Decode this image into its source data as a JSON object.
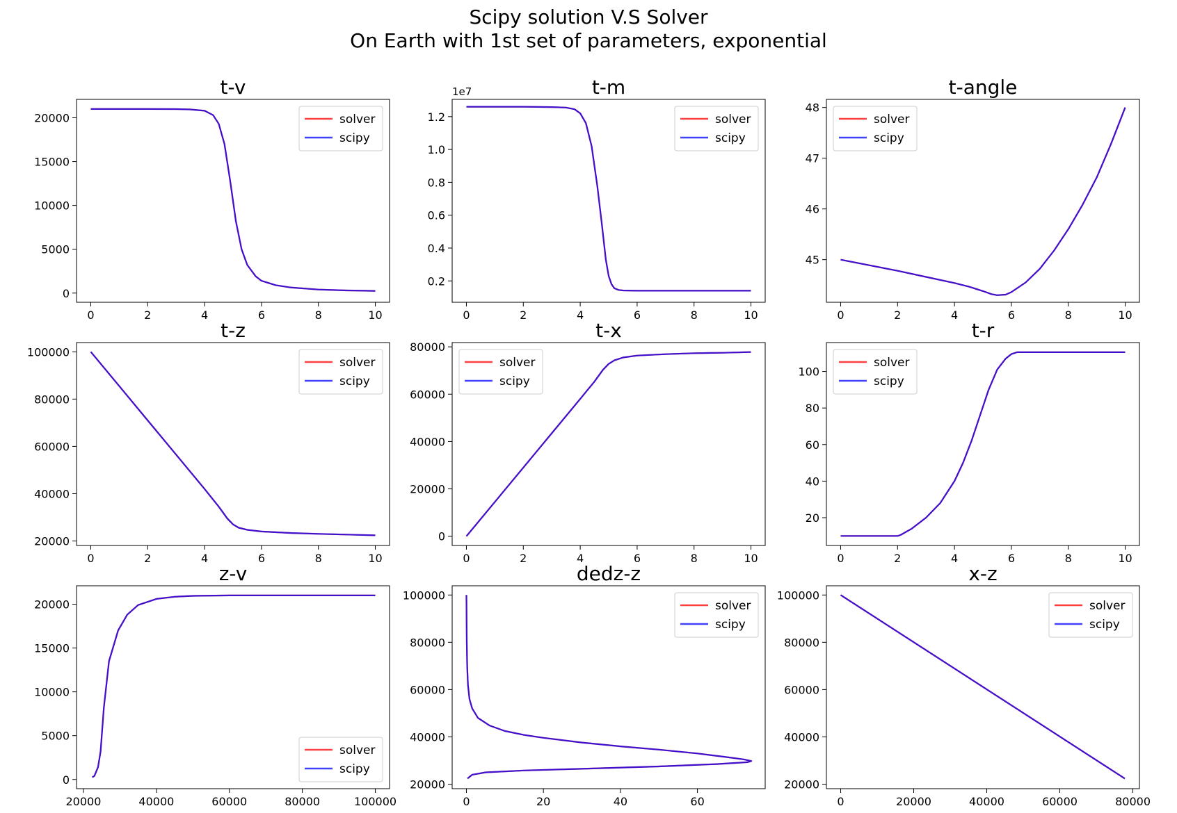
{
  "figure": {
    "title_line1": "Scipy solution V.S Solver",
    "title_line2": "On Earth with 1st set of parameters, exponential"
  },
  "colors": {
    "solver": "#ff0000",
    "scipy": "#0000ff",
    "legend_border": "#cccccc"
  },
  "chart_data": [
    {
      "type": "line",
      "title": "t-v",
      "xlim": [
        -0.5,
        10.5
      ],
      "ylim": [
        -1050,
        22100
      ],
      "xticks": [
        0,
        2,
        4,
        6,
        8,
        10
      ],
      "yticks": [
        0,
        5000,
        10000,
        15000,
        20000
      ],
      "ytick_labels": [
        "0",
        "5000",
        "10000",
        "15000",
        "20000"
      ],
      "legend": "upper right",
      "series": [
        {
          "name": "solver",
          "x": [
            0,
            2,
            3,
            3.5,
            4,
            4.3,
            4.5,
            4.7,
            4.9,
            5.0,
            5.1,
            5.3,
            5.5,
            5.8,
            6.0,
            6.5,
            7,
            8,
            9,
            10
          ],
          "y": [
            21000,
            21000,
            20990,
            20950,
            20800,
            20300,
            19300,
            17000,
            12800,
            10500,
            8200,
            5000,
            3200,
            1900,
            1400,
            900,
            650,
            400,
            300,
            250
          ]
        },
        {
          "name": "scipy",
          "x": [
            0,
            2,
            3,
            3.5,
            4,
            4.3,
            4.5,
            4.7,
            4.9,
            5.0,
            5.1,
            5.3,
            5.5,
            5.8,
            6.0,
            6.5,
            7,
            8,
            9,
            10
          ],
          "y": [
            21000,
            21000,
            20990,
            20950,
            20800,
            20300,
            19300,
            17000,
            12800,
            10500,
            8200,
            5000,
            3200,
            1900,
            1400,
            900,
            650,
            400,
            300,
            250
          ]
        }
      ]
    },
    {
      "type": "line",
      "title": "t-m",
      "xlim": [
        -0.5,
        10.5
      ],
      "ylim": [
        0.07,
        1.305
      ],
      "xticks": [
        0,
        2,
        4,
        6,
        8,
        10
      ],
      "yticks": [
        0.2,
        0.4,
        0.6,
        0.8,
        1.0,
        1.2
      ],
      "ytick_labels": [
        "0.2",
        "0.4",
        "0.6",
        "0.8",
        "1.0",
        "1.2"
      ],
      "y_offset_label": "1e7",
      "legend": "upper right",
      "series": [
        {
          "name": "solver",
          "x": [
            0,
            2,
            3,
            3.5,
            3.8,
            4.0,
            4.2,
            4.4,
            4.6,
            4.75,
            4.9,
            5.0,
            5.1,
            5.2,
            5.35,
            5.5,
            6,
            7,
            8,
            10
          ],
          "y": [
            1.26,
            1.26,
            1.258,
            1.255,
            1.245,
            1.22,
            1.16,
            1.02,
            0.78,
            0.56,
            0.33,
            0.23,
            0.18,
            0.155,
            0.145,
            0.142,
            0.14,
            0.14,
            0.14,
            0.14
          ]
        },
        {
          "name": "scipy",
          "x": [
            0,
            2,
            3,
            3.5,
            3.8,
            4.0,
            4.2,
            4.4,
            4.6,
            4.75,
            4.9,
            5.0,
            5.1,
            5.2,
            5.35,
            5.5,
            6,
            7,
            8,
            10
          ],
          "y": [
            1.26,
            1.26,
            1.258,
            1.255,
            1.245,
            1.22,
            1.16,
            1.02,
            0.78,
            0.56,
            0.33,
            0.23,
            0.18,
            0.155,
            0.145,
            0.142,
            0.14,
            0.14,
            0.14,
            0.14
          ]
        }
      ]
    },
    {
      "type": "line",
      "title": "t-angle",
      "xlim": [
        -0.5,
        10.5
      ],
      "ylim": [
        44.16,
        48.16
      ],
      "xticks": [
        0,
        2,
        4,
        6,
        8,
        10
      ],
      "yticks": [
        45,
        46,
        47,
        48
      ],
      "ytick_labels": [
        "45",
        "46",
        "47",
        "48"
      ],
      "legend": "upper left",
      "series": [
        {
          "name": "solver",
          "x": [
            0,
            1,
            2,
            3,
            4,
            4.5,
            5.0,
            5.3,
            5.5,
            5.8,
            6,
            6.5,
            7,
            7.5,
            8,
            8.5,
            9,
            9.5,
            10
          ],
          "y": [
            45.0,
            44.89,
            44.78,
            44.66,
            44.54,
            44.47,
            44.38,
            44.32,
            44.3,
            44.31,
            44.36,
            44.55,
            44.82,
            45.18,
            45.6,
            46.08,
            46.62,
            47.28,
            48.0
          ]
        },
        {
          "name": "scipy",
          "x": [
            0,
            1,
            2,
            3,
            4,
            4.5,
            5.0,
            5.3,
            5.5,
            5.8,
            6,
            6.5,
            7,
            7.5,
            8,
            8.5,
            9,
            9.5,
            10
          ],
          "y": [
            45.0,
            44.89,
            44.78,
            44.66,
            44.54,
            44.47,
            44.38,
            44.32,
            44.3,
            44.31,
            44.36,
            44.55,
            44.82,
            45.18,
            45.6,
            46.08,
            46.62,
            47.28,
            48.0
          ]
        }
      ]
    },
    {
      "type": "line",
      "title": "t-z",
      "xlim": [
        -0.5,
        10.5
      ],
      "ylim": [
        18100,
        103900
      ],
      "xticks": [
        0,
        2,
        4,
        6,
        8,
        10
      ],
      "yticks": [
        20000,
        40000,
        60000,
        80000,
        100000
      ],
      "ytick_labels": [
        "20000",
        "40000",
        "60000",
        "80000",
        "100000"
      ],
      "legend": "upper right",
      "series": [
        {
          "name": "solver",
          "x": [
            0,
            1,
            2,
            3,
            4,
            4.5,
            4.8,
            5.0,
            5.2,
            5.5,
            6,
            7,
            8,
            9,
            10
          ],
          "y": [
            100000,
            85500,
            71000,
            56500,
            42000,
            34500,
            29500,
            27000,
            25600,
            24700,
            24000,
            23400,
            23000,
            22700,
            22400
          ]
        },
        {
          "name": "scipy",
          "x": [
            0,
            1,
            2,
            3,
            4,
            4.5,
            4.8,
            5.0,
            5.2,
            5.5,
            6,
            7,
            8,
            9,
            10
          ],
          "y": [
            100000,
            85500,
            71000,
            56500,
            42000,
            34500,
            29500,
            27000,
            25600,
            24700,
            24000,
            23400,
            23000,
            22700,
            22400
          ]
        }
      ]
    },
    {
      "type": "line",
      "title": "t-x",
      "xlim": [
        -0.5,
        10.5
      ],
      "ylim": [
        -3900,
        81800
      ],
      "xticks": [
        0,
        2,
        4,
        6,
        8,
        10
      ],
      "yticks": [
        0,
        20000,
        40000,
        60000,
        80000
      ],
      "ytick_labels": [
        "0",
        "20000",
        "40000",
        "60000",
        "80000"
      ],
      "legend": "upper left",
      "series": [
        {
          "name": "solver",
          "x": [
            0,
            1,
            2,
            3,
            4,
            4.5,
            4.8,
            5.0,
            5.2,
            5.5,
            6,
            7,
            8,
            9,
            10
          ],
          "y": [
            0,
            14500,
            29000,
            43500,
            58000,
            65300,
            70300,
            72800,
            74300,
            75500,
            76300,
            76900,
            77300,
            77500,
            77800
          ]
        },
        {
          "name": "scipy",
          "x": [
            0,
            1,
            2,
            3,
            4,
            4.5,
            4.8,
            5.0,
            5.2,
            5.5,
            6,
            7,
            8,
            9,
            10
          ],
          "y": [
            0,
            14500,
            29000,
            43500,
            58000,
            65300,
            70300,
            72800,
            74300,
            75500,
            76300,
            76900,
            77300,
            77500,
            77800
          ]
        }
      ]
    },
    {
      "type": "line",
      "title": "t-r",
      "xlim": [
        -0.5,
        10.5
      ],
      "ylim": [
        4.8,
        115.8
      ],
      "xticks": [
        0,
        2,
        4,
        6,
        8,
        10
      ],
      "yticks": [
        20,
        40,
        60,
        80,
        100
      ],
      "ytick_labels": [
        "20",
        "40",
        "60",
        "80",
        "100"
      ],
      "legend": "upper left",
      "series": [
        {
          "name": "solver",
          "x": [
            0,
            1,
            2,
            2.1,
            2.5,
            3,
            3.5,
            4,
            4.3,
            4.6,
            4.9,
            5.2,
            5.5,
            5.8,
            6.0,
            6.2,
            7,
            8,
            9,
            10
          ],
          "y": [
            10,
            10,
            10,
            10.5,
            14,
            20,
            28,
            40,
            50,
            62,
            76,
            90,
            101,
            107,
            109.5,
            110.5,
            110.5,
            110.5,
            110.5,
            110.5
          ]
        },
        {
          "name": "scipy",
          "x": [
            0,
            1,
            2,
            2.1,
            2.5,
            3,
            3.5,
            4,
            4.3,
            4.6,
            4.9,
            5.2,
            5.5,
            5.8,
            6.0,
            6.2,
            7,
            8,
            9,
            10
          ],
          "y": [
            10,
            10,
            10,
            10.5,
            14,
            20,
            28,
            40,
            50,
            62,
            76,
            90,
            101,
            107,
            109.5,
            110.5,
            110.5,
            110.5,
            110.5,
            110.5
          ]
        }
      ]
    },
    {
      "type": "line",
      "title": "z-v",
      "xlim": [
        18100,
        103900
      ],
      "ylim": [
        -1050,
        22100
      ],
      "xticks": [
        20000,
        40000,
        60000,
        80000,
        100000
      ],
      "yticks": [
        0,
        5000,
        10000,
        15000,
        20000
      ],
      "xtick_labels": [
        "20000",
        "40000",
        "60000",
        "80000",
        "100000"
      ],
      "ytick_labels": [
        "0",
        "5000",
        "10000",
        "15000",
        "20000"
      ],
      "legend": "lower right",
      "series": [
        {
          "name": "solver",
          "x": [
            22400,
            23000,
            24000,
            24700,
            25600,
            27000,
            29500,
            32000,
            35000,
            40000,
            45000,
            50000,
            60000,
            80000,
            100000
          ],
          "y": [
            250,
            400,
            1400,
            3200,
            8200,
            13500,
            17000,
            18800,
            19900,
            20600,
            20850,
            20950,
            21000,
            21000,
            21000
          ]
        },
        {
          "name": "scipy",
          "x": [
            22400,
            23000,
            24000,
            24700,
            25600,
            27000,
            29500,
            32000,
            35000,
            40000,
            45000,
            50000,
            60000,
            80000,
            100000
          ],
          "y": [
            250,
            400,
            1400,
            3200,
            8200,
            13500,
            17000,
            18800,
            19900,
            20600,
            20850,
            20950,
            21000,
            21000,
            21000
          ]
        }
      ]
    },
    {
      "type": "line",
      "title": "dedz-z",
      "xlim": [
        -3.7,
        77.6
      ],
      "ylim": [
        18100,
        103900
      ],
      "xticks": [
        0,
        20,
        40,
        60
      ],
      "yticks": [
        20000,
        40000,
        60000,
        80000,
        100000
      ],
      "ytick_labels": [
        "20000",
        "40000",
        "60000",
        "80000",
        "100000"
      ],
      "legend": "upper right",
      "series": [
        {
          "name": "solver",
          "x": [
            0,
            0.1,
            0.2,
            0.4,
            0.8,
            1.5,
            3,
            6,
            10,
            15,
            20,
            30,
            40,
            50,
            60,
            67,
            72,
            74,
            73,
            65,
            50,
            30,
            15,
            5,
            1.5,
            0.3
          ],
          "y": [
            100000,
            80000,
            70000,
            62000,
            56000,
            52000,
            48000,
            44800,
            42500,
            40800,
            39600,
            37600,
            36000,
            34600,
            33000,
            31600,
            30500,
            29800,
            29300,
            28500,
            27500,
            26500,
            25800,
            25000,
            24000,
            22400
          ]
        },
        {
          "name": "scipy",
          "x": [
            0,
            0.1,
            0.2,
            0.4,
            0.8,
            1.5,
            3,
            6,
            10,
            15,
            20,
            30,
            40,
            50,
            60,
            67,
            72,
            74,
            73,
            65,
            50,
            30,
            15,
            5,
            1.5,
            0.3
          ],
          "y": [
            100000,
            80000,
            70000,
            62000,
            56000,
            52000,
            48000,
            44800,
            42500,
            40800,
            39600,
            37600,
            36000,
            34600,
            33000,
            31600,
            30500,
            29800,
            29300,
            28500,
            27500,
            26500,
            25800,
            25000,
            24000,
            22400
          ]
        }
      ]
    },
    {
      "type": "line",
      "title": "x-z",
      "xlim": [
        -3900,
        81800
      ],
      "ylim": [
        18100,
        103900
      ],
      "xticks": [
        0,
        20000,
        40000,
        60000,
        80000
      ],
      "yticks": [
        20000,
        40000,
        60000,
        80000,
        100000
      ],
      "xtick_labels": [
        "0",
        "20000",
        "40000",
        "60000",
        "80000"
      ],
      "ytick_labels": [
        "20000",
        "40000",
        "60000",
        "80000",
        "100000"
      ],
      "legend": "upper right",
      "series": [
        {
          "name": "solver",
          "x": [
            0,
            77800
          ],
          "y": [
            100000,
            22400
          ]
        },
        {
          "name": "scipy",
          "x": [
            0,
            77800
          ],
          "y": [
            100000,
            22400
          ]
        }
      ]
    }
  ]
}
